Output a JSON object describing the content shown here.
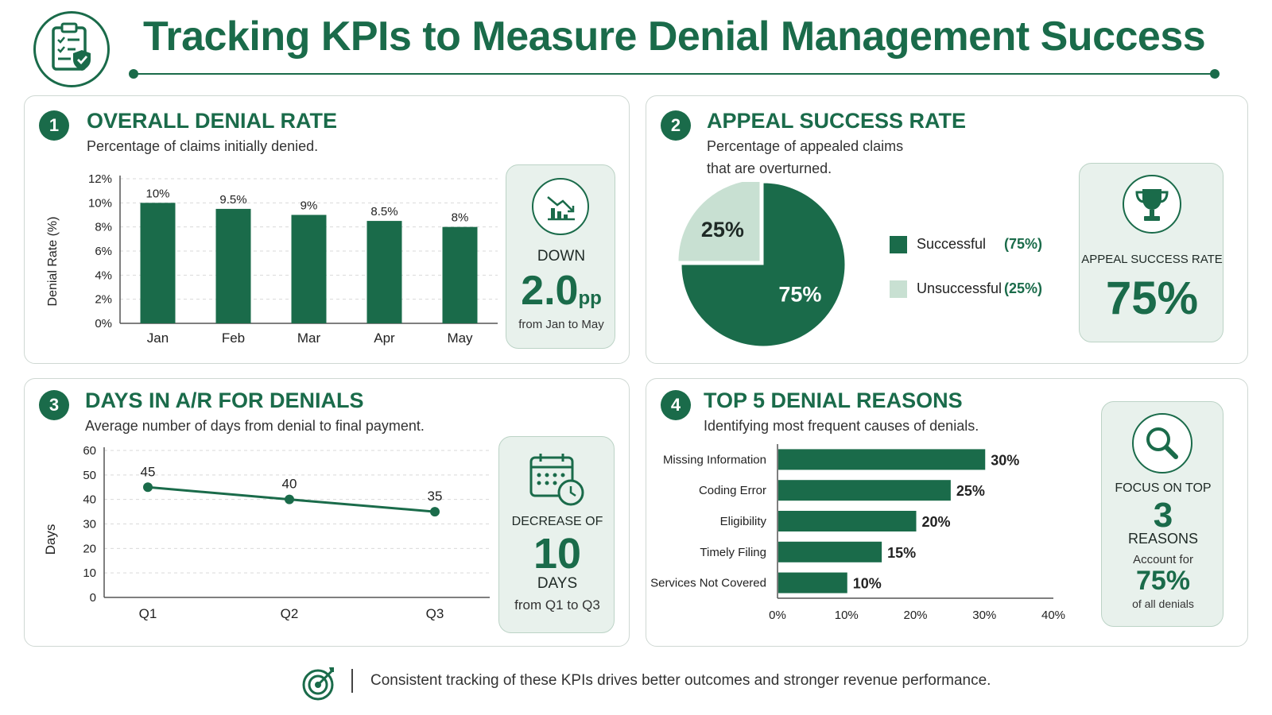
{
  "header": {
    "title": "Tracking KPIs to Measure Denial Management Success"
  },
  "colors": {
    "primary": "#1a6b4a",
    "light": "#c8e0d2",
    "panel_bg": "#e8f1ec"
  },
  "panels": {
    "denial_rate": {
      "number": "1",
      "title": "OVERALL DENIAL RATE",
      "subtitle": "Percentage of claims initially denied.",
      "stat": {
        "icon": "down-trend-chart-icon",
        "label": "DOWN",
        "value": "2.0",
        "unit": "pp",
        "note": "from Jan to May"
      }
    },
    "appeal": {
      "number": "2",
      "title": "APPEAL SUCCESS RATE",
      "subtitle_line1": "Percentage of appealed claims",
      "subtitle_line2": "that are overturned.",
      "stat": {
        "icon": "trophy-icon",
        "label": "APPEAL SUCCESS RATE",
        "value": "75%"
      }
    },
    "ar_days": {
      "number": "3",
      "title": "DAYS IN A/R FOR DENIALS",
      "subtitle": "Average number of days from denial to final payment.",
      "stat": {
        "icon": "calendar-clock-icon",
        "label": "DECREASE OF",
        "value": "10",
        "unit": "DAYS",
        "note": "from Q1 to Q3"
      }
    },
    "reasons": {
      "number": "4",
      "title": "TOP 5 DENIAL REASONS",
      "subtitle": "Identifying most frequent causes of denials.",
      "stat": {
        "icon": "magnifier-icon",
        "label": "FOCUS ON TOP",
        "value": "3",
        "unit": "REASONS",
        "note1": "Account for",
        "value2": "75%",
        "note2": "of all denials"
      }
    }
  },
  "chart_data": [
    {
      "type": "bar",
      "categories": [
        "Jan",
        "Feb",
        "Mar",
        "Apr",
        "May"
      ],
      "values": [
        10,
        9.5,
        9,
        8.5,
        8
      ],
      "data_labels": [
        "10%",
        "9.5%",
        "9%",
        "8.5%",
        "8%"
      ],
      "ylabel": "Denial Rate (%)",
      "ylim": [
        0,
        12
      ],
      "yticks": [
        "0%",
        "2%",
        "4%",
        "6%",
        "8%",
        "10%",
        "12%"
      ],
      "grid": true
    },
    {
      "type": "pie",
      "categories": [
        "Successful",
        "Unsuccessful"
      ],
      "values": [
        75,
        25
      ],
      "data_labels": [
        "75%",
        "25%"
      ],
      "legend_values": [
        "(75%)",
        "(25%)"
      ],
      "legend": "right"
    },
    {
      "type": "line",
      "categories": [
        "Q1",
        "Q2",
        "Q3"
      ],
      "values": [
        45,
        40,
        35
      ],
      "data_labels": [
        "45",
        "40",
        "35"
      ],
      "ylabel": "Days",
      "ylim": [
        0,
        60
      ],
      "yticks": [
        "0",
        "10",
        "20",
        "30",
        "40",
        "50",
        "60"
      ],
      "grid": true
    },
    {
      "type": "bar",
      "orientation": "horizontal",
      "categories": [
        "Missing Information",
        "Coding Error",
        "Eligibility",
        "Timely Filing",
        "Services Not Covered"
      ],
      "values": [
        30,
        25,
        20,
        15,
        10
      ],
      "data_labels": [
        "30%",
        "25%",
        "20%",
        "15%",
        "10%"
      ],
      "xlim": [
        0,
        40
      ],
      "xticks": [
        "0%",
        "10%",
        "20%",
        "30%",
        "40%"
      ],
      "grid": false
    }
  ],
  "footer": {
    "text": "Consistent tracking of these KPIs drives better outcomes and stronger revenue performance.",
    "icon": "target-icon"
  }
}
